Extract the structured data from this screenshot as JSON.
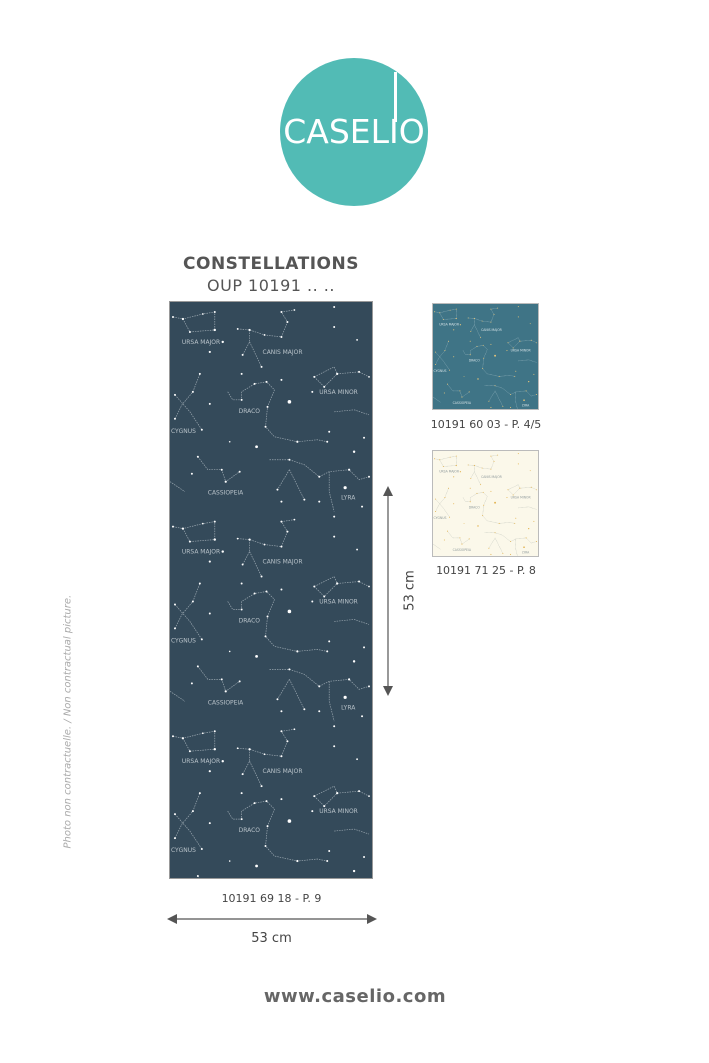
{
  "brand": {
    "logo_text": "CASELIO",
    "color": "#52bbb5"
  },
  "product": {
    "title": "CONSTELLATIONS",
    "reference": "OUP 10191 .. .."
  },
  "pattern_labels": {
    "ursa_major": "URSA MAJOR",
    "canis_major": "CANIS MAJOR",
    "ursa_minor": "URSA MINOR",
    "draco": "DRACO",
    "cygnus": "CYGNUS",
    "cassiopeia": "CASSIOPEIA",
    "lyra": "LYRA"
  },
  "variants": [
    {
      "ref": "10191 69 18 - P. 9",
      "background": "#344a5a"
    },
    {
      "ref": "10191 60 03 - P. 4/5",
      "background": "#3f7486"
    },
    {
      "ref": "10191 71 25 - P. 8",
      "background": "#fbf8ea"
    }
  ],
  "dimensions": {
    "width_label": "53 cm",
    "height_label": "53 cm"
  },
  "disclaimer": "Photo non contractuelle. / Non contractual picture.",
  "website": "www.caselio.com"
}
